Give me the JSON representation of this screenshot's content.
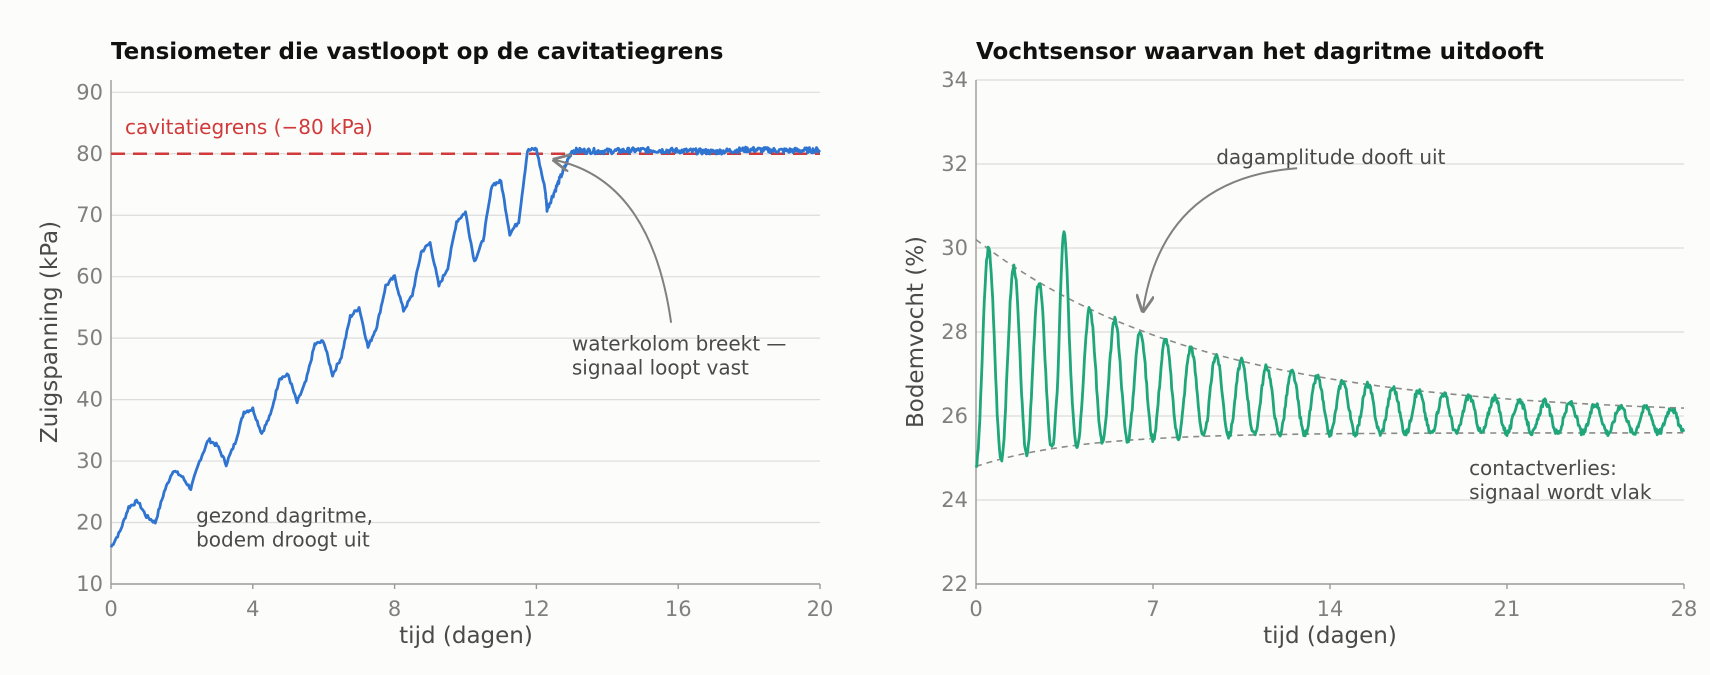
{
  "chart_data": [
    {
      "type": "line",
      "title": "Tensiometer die vastloopt op de cavitatiegrens",
      "xlabel": "tijd (dagen)",
      "ylabel": "Zuigspanning (kPa)",
      "xlim": [
        0,
        20
      ],
      "ylim": [
        10,
        92
      ],
      "xticks": [
        0,
        4,
        8,
        12,
        16,
        20
      ],
      "yticks": [
        10,
        20,
        30,
        40,
        50,
        60,
        70,
        80,
        90
      ],
      "grid": "horizontal",
      "line_color": "#2f74d0",
      "series": [
        {
          "x": [
            0,
            0.25,
            0.5,
            0.75,
            1,
            1.25,
            1.5,
            1.75,
            2,
            2.25,
            2.5,
            2.75,
            3,
            3.25,
            3.5,
            3.75,
            4,
            4.25,
            4.5,
            4.75,
            5,
            5.25,
            5.5,
            5.75,
            6,
            6.25,
            6.5,
            6.75,
            7,
            7.25,
            7.5,
            7.75,
            8,
            8.25,
            8.5,
            8.75,
            9,
            9.25,
            9.5,
            9.75,
            10,
            10.25,
            10.5,
            10.75,
            11,
            11.25,
            11.5,
            11.75,
            12,
            12.25,
            12.3,
            13,
            14,
            15,
            16,
            17,
            18,
            19,
            20
          ],
          "y": [
            16,
            18.5,
            22.5,
            23.5,
            21,
            20,
            25,
            28.5,
            27.5,
            25.5,
            30,
            33.5,
            32.5,
            29.5,
            33,
            38,
            38.5,
            34.5,
            37.5,
            43.5,
            44,
            39.5,
            43,
            49,
            49.5,
            44,
            47,
            53.5,
            55,
            48.5,
            52,
            58.5,
            60,
            54.5,
            57,
            64,
            65.5,
            58.5,
            61.5,
            69,
            70.5,
            62.5,
            66,
            75,
            75.5,
            67,
            69,
            80.5,
            80.8,
            74,
            71,
            80.5,
            80.4,
            80.6,
            80.5,
            80.3,
            80.7,
            80.5,
            80.6
          ]
        }
      ],
      "reference_line": {
        "y": 80,
        "label": "cavitatiegrens (−80 kPa)",
        "color": "#d03a3a"
      },
      "annotations": [
        {
          "lines": [
            "waterkolom breekt —",
            "signaal loopt vast"
          ],
          "arrow_to": [
            12.5,
            79
          ],
          "text_at": [
            13,
            48
          ]
        },
        {
          "lines": [
            "gezond dagritme,",
            "bodem droogt uit"
          ],
          "text_at": [
            2.4,
            20
          ]
        }
      ]
    },
    {
      "type": "line",
      "title": "Vochtsensor waarvan het dagritme uitdooft",
      "xlabel": "tijd (dagen)",
      "ylabel": "Bodemvocht (%)",
      "xlim": [
        0,
        28
      ],
      "ylim": [
        22,
        34
      ],
      "xticks": [
        0,
        7,
        14,
        21,
        28
      ],
      "yticks": [
        22,
        24,
        26,
        28,
        30,
        32,
        34
      ],
      "grid": "horizontal",
      "line_color": "#1fa67a",
      "series": [
        {
          "mean_start": 27.5,
          "mean_end": 25.8,
          "amplitude_start": 2.7,
          "amplitude_end": 0.25,
          "period_days": 1,
          "x_range": [
            0,
            28
          ]
        }
      ],
      "envelope": {
        "upper": {
          "start": 30.2,
          "end": 26.0
        },
        "lower": {
          "start": 24.8,
          "end": 25.6
        },
        "color": "#8a8a8a"
      },
      "annotations": [
        {
          "lines": [
            "dagamplitude dooft uit"
          ],
          "arrow_to": [
            6.6,
            28.5
          ],
          "text_at": [
            9.5,
            32
          ]
        },
        {
          "lines": [
            "contactverlies:",
            "signaal wordt vlak"
          ],
          "text_at": [
            19.5,
            24.6
          ]
        }
      ]
    }
  ]
}
